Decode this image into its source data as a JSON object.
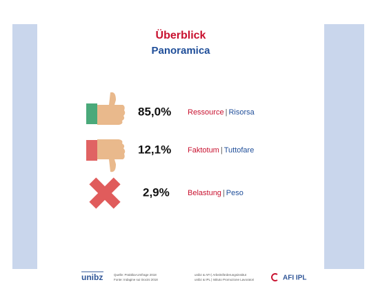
{
  "title": "Überblick",
  "subtitle": "Panoramica",
  "items": [
    {
      "value": "85,0%",
      "label_de": "Ressource",
      "label_it": "Risorsa"
    },
    {
      "value": "12,1%",
      "label_de": "Faktotum",
      "label_it": "Tuttofare"
    },
    {
      "value": "2,9%",
      "label_de": "Belastung",
      "label_it": "Peso"
    }
  ],
  "separator": "|",
  "footer": {
    "logo_left": "unibz",
    "source_de": "Quelle: Praktika-Umfrage 2018",
    "source_it": "Fonte: Indagine sui tirocini 2018",
    "org_de": "unibz & AFI | Arbeitsförderungsinstitut",
    "org_it": "unibz & IPL | Istituto Promozione Lavoratori",
    "logo_right": "AFI IPL"
  }
}
